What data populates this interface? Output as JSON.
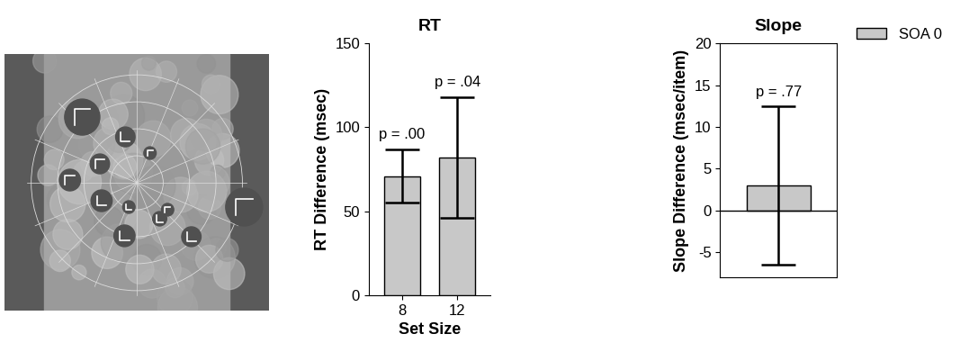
{
  "chart_data": [
    {
      "type": "bar",
      "title": "RT",
      "categories": [
        "8",
        "12"
      ],
      "xlabel": "Set Size",
      "ylabel": "RT Difference (msec)",
      "ylim": [
        0,
        150
      ],
      "yticks": [
        0,
        50,
        100,
        150
      ],
      "series": [
        {
          "color": "#c8c8c8",
          "values": [
            71,
            82
          ],
          "errors": [
            16,
            36
          ],
          "annotations": [
            "p = .00",
            "p = .04"
          ]
        }
      ]
    },
    {
      "type": "bar",
      "title": "Slope",
      "categories": [
        null
      ],
      "ylabel": "Slope Difference (msec/item)",
      "ylim": [
        -8,
        20
      ],
      "yticks": [
        -5,
        0,
        5,
        10,
        15,
        20
      ],
      "tick_labels": "y",
      "legend": "upper right",
      "series": [
        {
          "name": "SOA 0",
          "color": "#c8c8c8",
          "values": [
            3
          ],
          "errors": [
            9.5
          ],
          "annotations": [
            "p = .77"
          ]
        }
      ]
    }
  ]
}
